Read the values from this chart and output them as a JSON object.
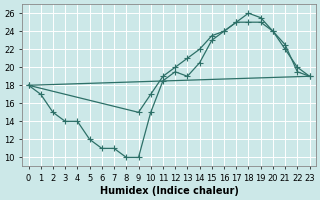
{
  "xlabel": "Humidex (Indice chaleur)",
  "bg_color": "#cce8e8",
  "grid_color": "#b8d8d8",
  "line_color": "#2d7068",
  "xlim": [
    -0.5,
    23.5
  ],
  "ylim": [
    9,
    27
  ],
  "xticks": [
    0,
    1,
    2,
    3,
    4,
    5,
    6,
    7,
    8,
    9,
    10,
    11,
    12,
    13,
    14,
    15,
    16,
    17,
    18,
    19,
    20,
    21,
    22,
    23
  ],
  "yticks": [
    10,
    12,
    14,
    16,
    18,
    20,
    22,
    24,
    26
  ],
  "curve1_x": [
    0,
    1,
    2,
    3,
    4,
    5,
    6,
    7,
    8,
    9,
    10,
    11,
    12,
    13,
    14,
    15,
    16,
    17,
    18,
    19,
    20,
    21,
    22,
    23
  ],
  "curve1_y": [
    18,
    17,
    15,
    14,
    14,
    12,
    11,
    11,
    10,
    10,
    15,
    18.5,
    19.5,
    19,
    20.5,
    23,
    24,
    25,
    26,
    25.5,
    24,
    22,
    20,
    19
  ],
  "curve2_x": [
    0,
    9,
    10,
    11,
    12,
    13,
    14,
    15,
    16,
    17,
    18,
    19,
    20,
    21,
    22,
    23
  ],
  "curve2_y": [
    18,
    15,
    17,
    19,
    20,
    21,
    22,
    23.5,
    24,
    25,
    25,
    25,
    24,
    22.5,
    19.5,
    19
  ],
  "baseline_x": [
    0,
    23
  ],
  "baseline_y": [
    18,
    19
  ],
  "font_size": 7,
  "tick_fontsize": 6,
  "marker_size": 2.5,
  "linewidth": 0.9
}
